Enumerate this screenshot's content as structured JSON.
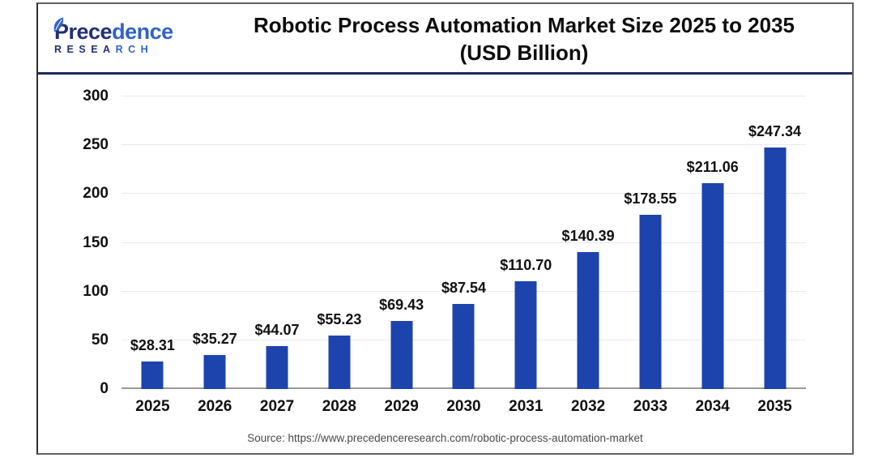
{
  "header": {
    "logo": {
      "name_dark": "Prece",
      "name_blue": "dence",
      "subtitle_dark": "RESEA",
      "subtitle_blue": "RCH"
    },
    "title_line1": "Robotic Process Automation Market Size 2025 to 2035",
    "title_line2": "(USD Billion)"
  },
  "footer": {
    "source": "Source: https://www.precedenceresearch.com/robotic-process-automation-market"
  },
  "colors": {
    "bar": "#1d44ad",
    "divider": "#1e2a5e",
    "gridline": "#e9e9e9",
    "axis_line": "#9a9a9a",
    "logo_dark": "#232f72",
    "logo_blue": "#2f63c8"
  },
  "chart_data": {
    "type": "bar",
    "title": "Robotic Process Automation Market Size 2025 to 2035 (USD Billion)",
    "categories": [
      "2025",
      "2026",
      "2027",
      "2028",
      "2029",
      "2030",
      "2031",
      "2032",
      "2033",
      "2034",
      "2035"
    ],
    "values": [
      28.31,
      35.27,
      44.07,
      55.23,
      69.43,
      87.54,
      110.7,
      140.39,
      178.55,
      211.06,
      247.34
    ],
    "value_labels": [
      "$28.31",
      "$35.27",
      "$44.07",
      "$55.23",
      "$69.43",
      "$87.54",
      "$110.70",
      "$140.39",
      "$178.55",
      "$211.06",
      "$247.34"
    ],
    "xlabel": "",
    "ylabel": "",
    "ylim": [
      0,
      300
    ],
    "yticks": [
      0,
      50,
      100,
      150,
      200,
      250,
      300
    ],
    "grid": "horizontal",
    "legend": "none",
    "bar_color": "#1d44ad"
  }
}
